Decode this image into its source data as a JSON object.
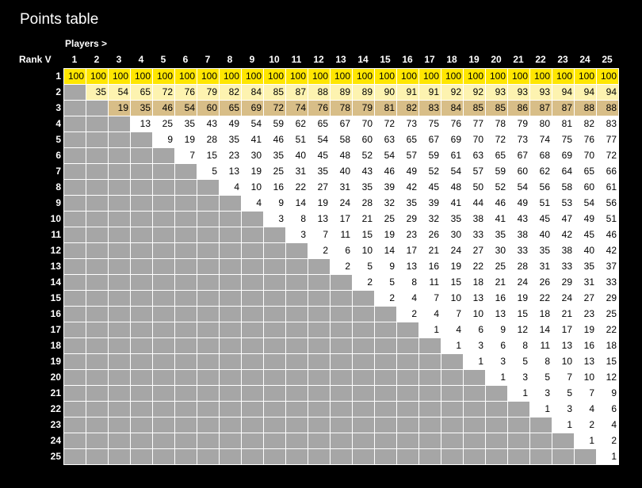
{
  "title": "Points table",
  "players_label": "Players  >",
  "rank_label": "Rank  V",
  "players": [
    "1",
    "2",
    "3",
    "4",
    "5",
    "6",
    "7",
    "8",
    "9",
    "10",
    "11",
    "12",
    "13",
    "14",
    "15",
    "16",
    "17",
    "18",
    "19",
    "20",
    "21",
    "22",
    "23",
    "24",
    "25"
  ],
  "ranks": [
    "1",
    "2",
    "3",
    "4",
    "5",
    "6",
    "7",
    "8",
    "9",
    "10",
    "11",
    "12",
    "13",
    "14",
    "15",
    "16",
    "17",
    "18",
    "19",
    "20",
    "21",
    "22",
    "23",
    "24",
    "25"
  ],
  "colors": {
    "background": "#000000",
    "grid_line": "#ffffff",
    "empty_cell": "#a6a6a6",
    "default_cell": "#ffffff",
    "rank1_cell": "#ffe600",
    "rank2_cell": "#fdf3b0",
    "rank3_cell": "#d8be88"
  },
  "rows": [
    [
      "100",
      "100",
      "100",
      "100",
      "100",
      "100",
      "100",
      "100",
      "100",
      "100",
      "100",
      "100",
      "100",
      "100",
      "100",
      "100",
      "100",
      "100",
      "100",
      "100",
      "100",
      "100",
      "100",
      "100",
      "100"
    ],
    [
      "",
      "35",
      "54",
      "65",
      "72",
      "76",
      "79",
      "82",
      "84",
      "85",
      "87",
      "88",
      "89",
      "89",
      "90",
      "91",
      "91",
      "92",
      "92",
      "93",
      "93",
      "93",
      "94",
      "94",
      "94"
    ],
    [
      "",
      "",
      "19",
      "35",
      "46",
      "54",
      "60",
      "65",
      "69",
      "72",
      "74",
      "76",
      "78",
      "79",
      "81",
      "82",
      "83",
      "84",
      "85",
      "85",
      "86",
      "87",
      "87",
      "88",
      "88"
    ],
    [
      "",
      "",
      "",
      "13",
      "25",
      "35",
      "43",
      "49",
      "54",
      "59",
      "62",
      "65",
      "67",
      "70",
      "72",
      "73",
      "75",
      "76",
      "77",
      "78",
      "79",
      "80",
      "81",
      "82",
      "83"
    ],
    [
      "",
      "",
      "",
      "",
      "9",
      "19",
      "28",
      "35",
      "41",
      "46",
      "51",
      "54",
      "58",
      "60",
      "63",
      "65",
      "67",
      "69",
      "70",
      "72",
      "73",
      "74",
      "75",
      "76",
      "77"
    ],
    [
      "",
      "",
      "",
      "",
      "",
      "7",
      "15",
      "23",
      "30",
      "35",
      "40",
      "45",
      "48",
      "52",
      "54",
      "57",
      "59",
      "61",
      "63",
      "65",
      "67",
      "68",
      "69",
      "70",
      "72"
    ],
    [
      "",
      "",
      "",
      "",
      "",
      "",
      "5",
      "13",
      "19",
      "25",
      "31",
      "35",
      "40",
      "43",
      "46",
      "49",
      "52",
      "54",
      "57",
      "59",
      "60",
      "62",
      "64",
      "65",
      "66"
    ],
    [
      "",
      "",
      "",
      "",
      "",
      "",
      "",
      "4",
      "10",
      "16",
      "22",
      "27",
      "31",
      "35",
      "39",
      "42",
      "45",
      "48",
      "50",
      "52",
      "54",
      "56",
      "58",
      "60",
      "61"
    ],
    [
      "",
      "",
      "",
      "",
      "",
      "",
      "",
      "",
      "4",
      "9",
      "14",
      "19",
      "24",
      "28",
      "32",
      "35",
      "39",
      "41",
      "44",
      "46",
      "49",
      "51",
      "53",
      "54",
      "56"
    ],
    [
      "",
      "",
      "",
      "",
      "",
      "",
      "",
      "",
      "",
      "3",
      "8",
      "13",
      "17",
      "21",
      "25",
      "29",
      "32",
      "35",
      "38",
      "41",
      "43",
      "45",
      "47",
      "49",
      "51"
    ],
    [
      "",
      "",
      "",
      "",
      "",
      "",
      "",
      "",
      "",
      "",
      "3",
      "7",
      "11",
      "15",
      "19",
      "23",
      "26",
      "30",
      "33",
      "35",
      "38",
      "40",
      "42",
      "45",
      "46"
    ],
    [
      "",
      "",
      "",
      "",
      "",
      "",
      "",
      "",
      "",
      "",
      "",
      "2",
      "6",
      "10",
      "14",
      "17",
      "21",
      "24",
      "27",
      "30",
      "33",
      "35",
      "38",
      "40",
      "42"
    ],
    [
      "",
      "",
      "",
      "",
      "",
      "",
      "",
      "",
      "",
      "",
      "",
      "",
      "2",
      "5",
      "9",
      "13",
      "16",
      "19",
      "22",
      "25",
      "28",
      "31",
      "33",
      "35",
      "37"
    ],
    [
      "",
      "",
      "",
      "",
      "",
      "",
      "",
      "",
      "",
      "",
      "",
      "",
      "",
      "2",
      "5",
      "8",
      "11",
      "15",
      "18",
      "21",
      "24",
      "26",
      "29",
      "31",
      "33"
    ],
    [
      "",
      "",
      "",
      "",
      "",
      "",
      "",
      "",
      "",
      "",
      "",
      "",
      "",
      "",
      "2",
      "4",
      "7",
      "10",
      "13",
      "16",
      "19",
      "22",
      "24",
      "27",
      "29"
    ],
    [
      "",
      "",
      "",
      "",
      "",
      "",
      "",
      "",
      "",
      "",
      "",
      "",
      "",
      "",
      "",
      "2",
      "4",
      "7",
      "10",
      "13",
      "15",
      "18",
      "21",
      "23",
      "25"
    ],
    [
      "",
      "",
      "",
      "",
      "",
      "",
      "",
      "",
      "",
      "",
      "",
      "",
      "",
      "",
      "",
      "",
      "1",
      "4",
      "6",
      "9",
      "12",
      "14",
      "17",
      "19",
      "22"
    ],
    [
      "",
      "",
      "",
      "",
      "",
      "",
      "",
      "",
      "",
      "",
      "",
      "",
      "",
      "",
      "",
      "",
      "",
      "1",
      "3",
      "6",
      "8",
      "11",
      "13",
      "16",
      "18"
    ],
    [
      "",
      "",
      "",
      "",
      "",
      "",
      "",
      "",
      "",
      "",
      "",
      "",
      "",
      "",
      "",
      "",
      "",
      "",
      "1",
      "3",
      "5",
      "8",
      "10",
      "13",
      "15"
    ],
    [
      "",
      "",
      "",
      "",
      "",
      "",
      "",
      "",
      "",
      "",
      "",
      "",
      "",
      "",
      "",
      "",
      "",
      "",
      "",
      "1",
      "3",
      "5",
      "7",
      "10",
      "12"
    ],
    [
      "",
      "",
      "",
      "",
      "",
      "",
      "",
      "",
      "",
      "",
      "",
      "",
      "",
      "",
      "",
      "",
      "",
      "",
      "",
      "",
      "1",
      "3",
      "5",
      "7",
      "9"
    ],
    [
      "",
      "",
      "",
      "",
      "",
      "",
      "",
      "",
      "",
      "",
      "",
      "",
      "",
      "",
      "",
      "",
      "",
      "",
      "",
      "",
      "",
      "1",
      "3",
      "4",
      "6"
    ],
    [
      "",
      "",
      "",
      "",
      "",
      "",
      "",
      "",
      "",
      "",
      "",
      "",
      "",
      "",
      "",
      "",
      "",
      "",
      "",
      "",
      "",
      "",
      "1",
      "2",
      "4"
    ],
    [
      "",
      "",
      "",
      "",
      "",
      "",
      "",
      "",
      "",
      "",
      "",
      "",
      "",
      "",
      "",
      "",
      "",
      "",
      "",
      "",
      "",
      "",
      "",
      "1",
      "2"
    ],
    [
      "",
      "",
      "",
      "",
      "",
      "",
      "",
      "",
      "",
      "",
      "",
      "",
      "",
      "",
      "",
      "",
      "",
      "",
      "",
      "",
      "",
      "",
      "",
      "",
      "1"
    ]
  ]
}
